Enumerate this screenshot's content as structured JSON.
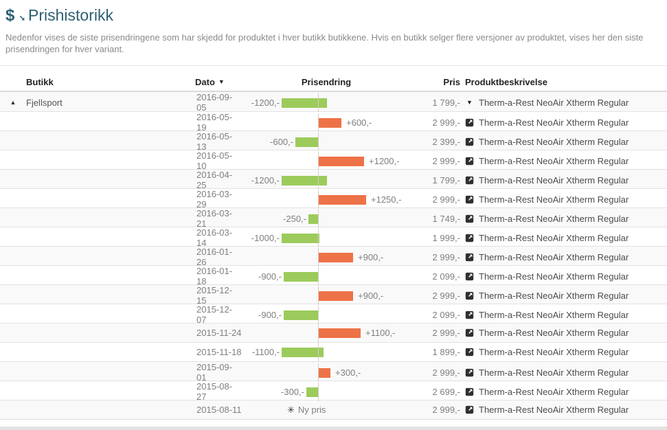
{
  "page": {
    "title": "Prishistorikk",
    "description": "Nedenfor vises de siste prisendringene som har skjedd for produktet i hver butikk butikkene. Hvis en butikk selger flere versjoner av produktet, vises her den siste prisendringen for hver variant."
  },
  "icons": {
    "title_dollar": "$",
    "title_arrow": "➘",
    "sort_desc": "▼",
    "store_expand": "▲",
    "variant_expanded": "▼",
    "new_price_star": "✳",
    "product_link": "external-link-square-icon"
  },
  "colors": {
    "accent_title": "#2e5f73",
    "bar_decrease": "#9ccb5b",
    "bar_increase": "#ee7247",
    "axis_line": "#d7cdbf",
    "stripe": "#f9f9f9"
  },
  "table": {
    "headers": {
      "butikk": "Butikk",
      "dato": "Dato",
      "prisendring": "Prisendring",
      "pris": "Pris",
      "produktbeskrivelse": "Produktbeskrivelse"
    },
    "store_name": "Fjellsport",
    "product_name": "Therm-a-Rest NeoAir Xtherm Regular",
    "new_price_label": "Ny pris",
    "rows": [
      {
        "date": "2016-09-05",
        "change": -1200,
        "change_label": "-1200,-",
        "price": "1 799,-"
      },
      {
        "date": "2016-05-19",
        "change": 600,
        "change_label": "+600,-",
        "price": "2 999,-"
      },
      {
        "date": "2016-05-13",
        "change": -600,
        "change_label": "-600,-",
        "price": "2 399,-"
      },
      {
        "date": "2016-05-10",
        "change": 1200,
        "change_label": "+1200,-",
        "price": "2 999,-"
      },
      {
        "date": "2016-04-25",
        "change": -1200,
        "change_label": "-1200,-",
        "price": "1 799,-"
      },
      {
        "date": "2016-03-29",
        "change": 1250,
        "change_label": "+1250,-",
        "price": "2 999,-"
      },
      {
        "date": "2016-03-21",
        "change": -250,
        "change_label": "-250,-",
        "price": "1 749,-"
      },
      {
        "date": "2016-03-14",
        "change": -1000,
        "change_label": "-1000,-",
        "price": "1 999,-"
      },
      {
        "date": "2016-01-26",
        "change": 900,
        "change_label": "+900,-",
        "price": "2 999,-"
      },
      {
        "date": "2016-01-18",
        "change": -900,
        "change_label": "-900,-",
        "price": "2 099,-"
      },
      {
        "date": "2015-12-15",
        "change": 900,
        "change_label": "+900,-",
        "price": "2 999,-"
      },
      {
        "date": "2015-12-07",
        "change": -900,
        "change_label": "-900,-",
        "price": "2 099,-"
      },
      {
        "date": "2015-11-24",
        "change": 1100,
        "change_label": "+1100,-",
        "price": "2 999,-"
      },
      {
        "date": "2015-11-18",
        "change": -1100,
        "change_label": "-1100,-",
        "price": "1 899,-"
      },
      {
        "date": "2015-09-01",
        "change": 300,
        "change_label": "+300,-",
        "price": "2 999,-"
      },
      {
        "date": "2015-08-27",
        "change": -300,
        "change_label": "-300,-",
        "price": "2 699,-"
      },
      {
        "date": "2015-08-11",
        "change": null,
        "change_label": "Ny pris",
        "price": "2 999,-"
      }
    ]
  }
}
